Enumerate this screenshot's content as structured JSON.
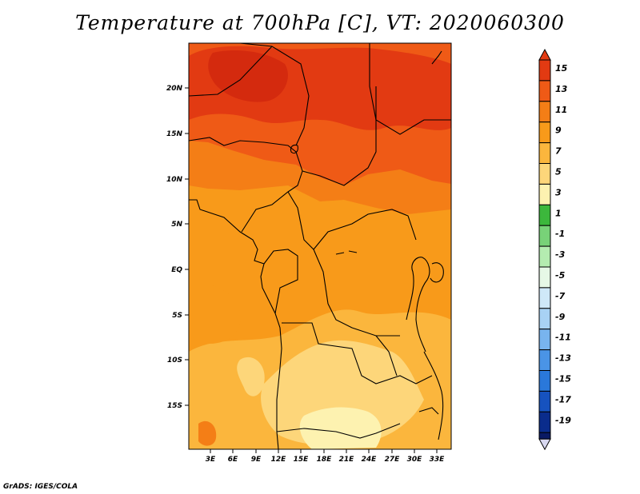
{
  "title": "Temperature at 700hPa [C], VT: 2020060300",
  "footer": "GrADS: IGES/COLA",
  "map": {
    "lat_ticks": [
      "20N",
      "15N",
      "10N",
      "5N",
      "EQ",
      "5S",
      "10S",
      "15S"
    ],
    "lon_ticks": [
      "3E",
      "6E",
      "9E",
      "12E",
      "15E",
      "18E",
      "21E",
      "24E",
      "27E",
      "30E",
      "33E"
    ]
  },
  "colorbar": {
    "labels": [
      "15",
      "13",
      "11",
      "9",
      "7",
      "5",
      "3",
      "1",
      "-1",
      "-3",
      "-5",
      "-7",
      "-9",
      "-11",
      "-13",
      "-15",
      "-17",
      "-19"
    ],
    "colors": [
      "#e23a12",
      "#ef5a16",
      "#f47e16",
      "#f89a1a",
      "#fbb63d",
      "#fdd67a",
      "#fdf2b0",
      "#3cb73c",
      "#78d278",
      "#b4ecb0",
      "#e6f8e6",
      "#cfe8f8",
      "#a8d2f4",
      "#78b4ee",
      "#4a94e6",
      "#2a78da",
      "#1652bf",
      "#0a2c8c",
      "#0a1a64"
    ],
    "top_cap_color": "#e23a12",
    "bottom_cap_color": "#d8d8f0"
  }
}
